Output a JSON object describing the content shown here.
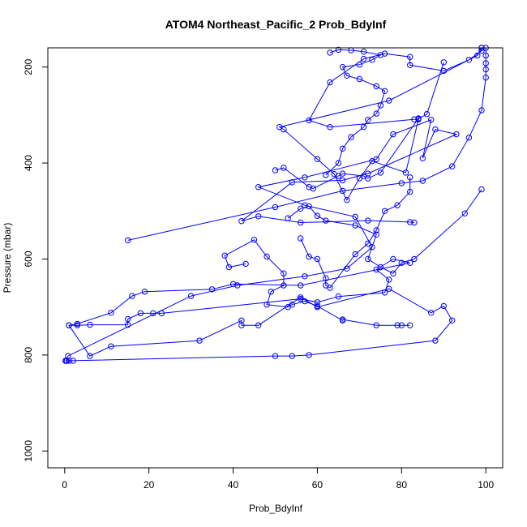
{
  "chart_data": {
    "type": "scatter",
    "title": "ATOM4 Northeast_Pacific_2 Prob_BdyInf",
    "xlabel": "Prob_BdyInf",
    "ylabel": "Pressure (mbar)",
    "xlim": [
      -4,
      104
    ],
    "ylim": [
      1035,
      160
    ],
    "y_inverted": true,
    "xticks": [
      0,
      20,
      40,
      60,
      80,
      100
    ],
    "yticks": [
      200,
      400,
      600,
      800,
      1000
    ],
    "grid": false,
    "color": "#0000ff",
    "marker": "open-circle",
    "connected": true,
    "series": [
      {
        "values": [
          {
            "x": 0.2,
            "y": 812
          },
          {
            "x": 1,
            "y": 812
          },
          {
            "x": 2,
            "y": 812
          },
          {
            "x": 0.5,
            "y": 812
          },
          {
            "x": 50,
            "y": 802
          },
          {
            "x": 54,
            "y": 802
          },
          {
            "x": 58,
            "y": 800
          },
          {
            "x": 88,
            "y": 770
          },
          {
            "x": 92,
            "y": 728
          },
          {
            "x": 90,
            "y": 698
          },
          {
            "x": 87,
            "y": 712
          },
          {
            "x": 77,
            "y": 662
          },
          {
            "x": 60,
            "y": 700
          },
          {
            "x": 56,
            "y": 680
          },
          {
            "x": 46,
            "y": 738
          },
          {
            "x": 42,
            "y": 738
          },
          {
            "x": 42,
            "y": 728
          },
          {
            "x": 32,
            "y": 770
          },
          {
            "x": 11,
            "y": 782
          },
          {
            "x": 6,
            "y": 802
          },
          {
            "x": 1,
            "y": 738
          },
          {
            "x": 3,
            "y": 738
          },
          {
            "x": 6,
            "y": 737
          },
          {
            "x": 15,
            "y": 737
          },
          {
            "x": 15,
            "y": 725
          },
          {
            "x": 18,
            "y": 713
          },
          {
            "x": 21,
            "y": 713
          },
          {
            "x": 23,
            "y": 713
          },
          {
            "x": 56,
            "y": 683
          },
          {
            "x": 60,
            "y": 690
          },
          {
            "x": 65,
            "y": 678
          },
          {
            "x": 76,
            "y": 670
          },
          {
            "x": 77,
            "y": 643
          },
          {
            "x": 74,
            "y": 622
          },
          {
            "x": 78,
            "y": 600
          },
          {
            "x": 82,
            "y": 608
          },
          {
            "x": 56,
            "y": 655
          },
          {
            "x": 40,
            "y": 652
          },
          {
            "x": 35,
            "y": 663
          },
          {
            "x": 19,
            "y": 668
          },
          {
            "x": 16,
            "y": 677
          },
          {
            "x": 11,
            "y": 712
          },
          {
            "x": 3,
            "y": 735
          },
          {
            "x": 1,
            "y": 738
          }
        ]
      },
      {
        "values": [
          {
            "x": 0.3,
            "y": 812
          },
          {
            "x": 0.8,
            "y": 802
          },
          {
            "x": 30,
            "y": 677
          },
          {
            "x": 41,
            "y": 655
          },
          {
            "x": 57,
            "y": 636
          },
          {
            "x": 67,
            "y": 620
          },
          {
            "x": 73,
            "y": 575
          },
          {
            "x": 69,
            "y": 512
          },
          {
            "x": 57,
            "y": 488
          },
          {
            "x": 46,
            "y": 450
          },
          {
            "x": 57,
            "y": 430
          },
          {
            "x": 74,
            "y": 392
          },
          {
            "x": 78,
            "y": 340
          },
          {
            "x": 87,
            "y": 310
          },
          {
            "x": 85,
            "y": 390
          },
          {
            "x": 88,
            "y": 330
          },
          {
            "x": 93,
            "y": 340
          },
          {
            "x": 72,
            "y": 422
          },
          {
            "x": 66,
            "y": 436
          },
          {
            "x": 54,
            "y": 440
          },
          {
            "x": 42,
            "y": 521
          },
          {
            "x": 46,
            "y": 511
          },
          {
            "x": 56,
            "y": 524
          },
          {
            "x": 72,
            "y": 520
          },
          {
            "x": 82,
            "y": 523
          },
          {
            "x": 83,
            "y": 524
          }
        ]
      },
      {
        "values": [
          {
            "x": 15,
            "y": 561
          },
          {
            "x": 50,
            "y": 492
          },
          {
            "x": 66,
            "y": 458
          },
          {
            "x": 80,
            "y": 442
          },
          {
            "x": 85,
            "y": 437
          },
          {
            "x": 92,
            "y": 407
          },
          {
            "x": 96,
            "y": 347
          },
          {
            "x": 99,
            "y": 290
          },
          {
            "x": 100,
            "y": 222
          },
          {
            "x": 100,
            "y": 205
          },
          {
            "x": 100,
            "y": 192
          },
          {
            "x": 100,
            "y": 176
          },
          {
            "x": 100,
            "y": 160
          },
          {
            "x": 99,
            "y": 157
          },
          {
            "x": 98,
            "y": 176
          },
          {
            "x": 77,
            "y": 270
          },
          {
            "x": 51,
            "y": 325
          },
          {
            "x": 52,
            "y": 330
          },
          {
            "x": 60,
            "y": 392
          },
          {
            "x": 64,
            "y": 423
          },
          {
            "x": 67,
            "y": 477
          },
          {
            "x": 70,
            "y": 432
          },
          {
            "x": 73,
            "y": 396
          },
          {
            "x": 81,
            "y": 420
          },
          {
            "x": 84,
            "y": 309
          },
          {
            "x": 83,
            "y": 309
          },
          {
            "x": 63,
            "y": 325
          },
          {
            "x": 58,
            "y": 311
          },
          {
            "x": 63,
            "y": 232
          },
          {
            "x": 71,
            "y": 183
          },
          {
            "x": 76,
            "y": 172
          },
          {
            "x": 82,
            "y": 179
          },
          {
            "x": 82,
            "y": 196
          },
          {
            "x": 90,
            "y": 208
          },
          {
            "x": 96,
            "y": 185
          },
          {
            "x": 99,
            "y": 166
          },
          {
            "x": 99,
            "y": 156
          }
        ]
      },
      {
        "values": [
          {
            "x": 43,
            "y": 610
          },
          {
            "x": 39,
            "y": 617
          },
          {
            "x": 38,
            "y": 593
          },
          {
            "x": 45,
            "y": 560
          },
          {
            "x": 48,
            "y": 595
          },
          {
            "x": 52,
            "y": 630
          },
          {
            "x": 52,
            "y": 655
          },
          {
            "x": 49,
            "y": 668
          },
          {
            "x": 48,
            "y": 695
          },
          {
            "x": 53,
            "y": 700
          },
          {
            "x": 54,
            "y": 695
          },
          {
            "x": 57,
            "y": 688
          },
          {
            "x": 60,
            "y": 698
          },
          {
            "x": 66,
            "y": 728
          },
          {
            "x": 66,
            "y": 726
          },
          {
            "x": 74,
            "y": 738
          },
          {
            "x": 79,
            "y": 738
          },
          {
            "x": 80,
            "y": 738
          },
          {
            "x": 82,
            "y": 738
          }
        ]
      },
      {
        "values": [
          {
            "x": 50,
            "y": 415
          },
          {
            "x": 52,
            "y": 410
          },
          {
            "x": 58,
            "y": 450
          },
          {
            "x": 59,
            "y": 453
          },
          {
            "x": 65,
            "y": 427
          },
          {
            "x": 66,
            "y": 422
          },
          {
            "x": 71,
            "y": 427
          },
          {
            "x": 72,
            "y": 432
          },
          {
            "x": 75,
            "y": 420
          },
          {
            "x": 84,
            "y": 307
          },
          {
            "x": 84,
            "y": 308
          },
          {
            "x": 86,
            "y": 298
          },
          {
            "x": 90,
            "y": 190
          }
        ]
      },
      {
        "values": [
          {
            "x": 53,
            "y": 515
          },
          {
            "x": 56,
            "y": 495
          },
          {
            "x": 58,
            "y": 490
          },
          {
            "x": 60,
            "y": 510
          },
          {
            "x": 62,
            "y": 520
          },
          {
            "x": 69,
            "y": 530
          },
          {
            "x": 74,
            "y": 549
          },
          {
            "x": 72,
            "y": 600
          },
          {
            "x": 75,
            "y": 617
          },
          {
            "x": 78,
            "y": 630
          },
          {
            "x": 80,
            "y": 608
          },
          {
            "x": 83,
            "y": 600
          },
          {
            "x": 95,
            "y": 505
          },
          {
            "x": 99,
            "y": 455
          }
        ]
      },
      {
        "values": [
          {
            "x": 56,
            "y": 557
          },
          {
            "x": 58,
            "y": 595
          },
          {
            "x": 60,
            "y": 600
          },
          {
            "x": 62,
            "y": 640
          },
          {
            "x": 62,
            "y": 655
          },
          {
            "x": 63,
            "y": 660
          },
          {
            "x": 69,
            "y": 590
          },
          {
            "x": 72,
            "y": 568
          },
          {
            "x": 74,
            "y": 540
          },
          {
            "x": 76,
            "y": 500
          },
          {
            "x": 79,
            "y": 488
          },
          {
            "x": 82,
            "y": 460
          },
          {
            "x": 82,
            "y": 430
          }
        ]
      },
      {
        "values": [
          {
            "x": 62,
            "y": 425
          },
          {
            "x": 65,
            "y": 400
          },
          {
            "x": 66,
            "y": 370
          },
          {
            "x": 68,
            "y": 346
          },
          {
            "x": 71,
            "y": 325
          },
          {
            "x": 72,
            "y": 310
          },
          {
            "x": 74,
            "y": 297
          },
          {
            "x": 75,
            "y": 280
          },
          {
            "x": 76,
            "y": 250
          },
          {
            "x": 74,
            "y": 240
          },
          {
            "x": 70,
            "y": 225
          },
          {
            "x": 67,
            "y": 218
          },
          {
            "x": 66,
            "y": 200
          },
          {
            "x": 70,
            "y": 195
          },
          {
            "x": 73,
            "y": 185
          },
          {
            "x": 75,
            "y": 175
          },
          {
            "x": 71,
            "y": 168
          },
          {
            "x": 68,
            "y": 165
          },
          {
            "x": 65,
            "y": 164
          },
          {
            "x": 63,
            "y": 170
          }
        ]
      }
    ]
  }
}
